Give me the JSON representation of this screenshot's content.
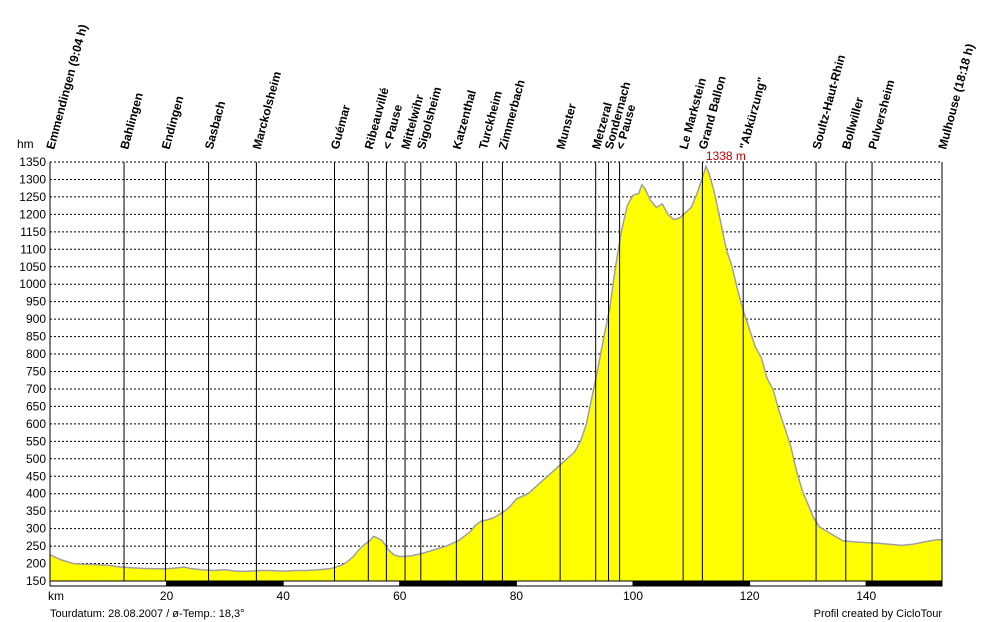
{
  "chart_data": {
    "type": "area",
    "title": "",
    "xlabel": "km",
    "ylabel": "hm",
    "xlim": [
      0,
      153
    ],
    "ylim": [
      150,
      1350
    ],
    "grid": true,
    "fill_color": "#ffff00",
    "line_color": "#a0a0a0",
    "y_ticks": [
      150,
      200,
      250,
      300,
      350,
      400,
      450,
      500,
      550,
      600,
      650,
      700,
      750,
      800,
      850,
      900,
      950,
      1000,
      1050,
      1100,
      1150,
      1200,
      1250,
      1300,
      1350
    ],
    "x_ticks": [
      20,
      40,
      60,
      80,
      100,
      120,
      140
    ],
    "peak_label": "1338 m",
    "peak": {
      "x": 112.5,
      "y": 1338
    },
    "profile": [
      [
        0,
        225
      ],
      [
        2,
        210
      ],
      [
        4,
        200
      ],
      [
        6,
        198
      ],
      [
        8,
        197
      ],
      [
        10,
        195
      ],
      [
        12,
        190
      ],
      [
        14,
        188
      ],
      [
        16,
        186
      ],
      [
        18,
        185
      ],
      [
        20,
        185
      ],
      [
        22,
        188
      ],
      [
        23,
        190
      ],
      [
        24,
        186
      ],
      [
        26,
        182
      ],
      [
        28,
        180
      ],
      [
        30,
        182
      ],
      [
        32,
        178
      ],
      [
        34,
        178
      ],
      [
        36,
        180
      ],
      [
        38,
        180
      ],
      [
        40,
        178
      ],
      [
        42,
        180
      ],
      [
        44,
        180
      ],
      [
        46,
        182
      ],
      [
        48,
        185
      ],
      [
        50,
        195
      ],
      [
        51,
        205
      ],
      [
        52,
        220
      ],
      [
        53,
        240
      ],
      [
        54,
        255
      ],
      [
        55,
        268
      ],
      [
        55.5,
        278
      ],
      [
        56,
        275
      ],
      [
        57,
        265
      ],
      [
        58,
        240
      ],
      [
        59,
        225
      ],
      [
        60,
        220
      ],
      [
        62,
        222
      ],
      [
        64,
        230
      ],
      [
        66,
        240
      ],
      [
        68,
        250
      ],
      [
        70,
        265
      ],
      [
        72,
        290
      ],
      [
        73,
        310
      ],
      [
        74,
        322
      ],
      [
        75,
        325
      ],
      [
        76,
        330
      ],
      [
        77,
        340
      ],
      [
        78,
        350
      ],
      [
        79,
        365
      ],
      [
        80,
        385
      ],
      [
        82,
        400
      ],
      [
        84,
        430
      ],
      [
        86,
        460
      ],
      [
        88,
        490
      ],
      [
        89,
        505
      ],
      [
        90,
        520
      ],
      [
        91,
        550
      ],
      [
        92,
        600
      ],
      [
        93,
        680
      ],
      [
        94,
        760
      ],
      [
        95,
        850
      ],
      [
        96,
        930
      ],
      [
        97,
        1050
      ],
      [
        98,
        1150
      ],
      [
        99,
        1225
      ],
      [
        100,
        1255
      ],
      [
        101,
        1260
      ],
      [
        101.5,
        1285
      ],
      [
        102,
        1275
      ],
      [
        103,
        1240
      ],
      [
        104,
        1220
      ],
      [
        105,
        1230
      ],
      [
        106,
        1200
      ],
      [
        107,
        1185
      ],
      [
        108,
        1190
      ],
      [
        109,
        1205
      ],
      [
        110,
        1220
      ],
      [
        111,
        1260
      ],
      [
        112,
        1310
      ],
      [
        112.5,
        1338
      ],
      [
        113,
        1320
      ],
      [
        114,
        1260
      ],
      [
        115,
        1180
      ],
      [
        116,
        1100
      ],
      [
        117,
        1050
      ],
      [
        118,
        980
      ],
      [
        119,
        920
      ],
      [
        120,
        870
      ],
      [
        121,
        820
      ],
      [
        122,
        790
      ],
      [
        123,
        730
      ],
      [
        124,
        700
      ],
      [
        125,
        640
      ],
      [
        126,
        590
      ],
      [
        127,
        540
      ],
      [
        128,
        470
      ],
      [
        129,
        410
      ],
      [
        130,
        370
      ],
      [
        131,
        330
      ],
      [
        132,
        305
      ],
      [
        134,
        285
      ],
      [
        136,
        265
      ],
      [
        138,
        262
      ],
      [
        140,
        260
      ],
      [
        142,
        258
      ],
      [
        144,
        255
      ],
      [
        146,
        252
      ],
      [
        148,
        255
      ],
      [
        150,
        262
      ],
      [
        152,
        268
      ],
      [
        153,
        268
      ]
    ],
    "waypoints": [
      {
        "km": 0,
        "name": "Emmendingen (9:04 h)"
      },
      {
        "km": 12.7,
        "name": "Bahlingen"
      },
      {
        "km": 19.8,
        "name": "Endingen"
      },
      {
        "km": 27.2,
        "name": "Sasbach"
      },
      {
        "km": 35.4,
        "name": "Marckolsheim"
      },
      {
        "km": 48.8,
        "name": "Guémar"
      },
      {
        "km": 54.6,
        "name": "Ribeauvillé"
      },
      {
        "km": 57.7,
        "name": "< Pause"
      },
      {
        "km": 60.9,
        "name": "Mittelwihr"
      },
      {
        "km": 63.6,
        "name": "Sigolsheim"
      },
      {
        "km": 69.7,
        "name": "Katzenthal"
      },
      {
        "km": 74.2,
        "name": "Turckheim"
      },
      {
        "km": 77.6,
        "name": "Zimmerbach"
      },
      {
        "km": 87.5,
        "name": "Munster"
      },
      {
        "km": 93.6,
        "name": "Metzeral"
      },
      {
        "km": 95.8,
        "name": "Sondernach"
      },
      {
        "km": 97.7,
        "name": "< Pause"
      },
      {
        "km": 108.6,
        "name": "Le Markstein"
      },
      {
        "km": 111.9,
        "name": "Grand Ballon"
      },
      {
        "km": 118.9,
        "name": "\"Abkürzung\""
      },
      {
        "km": 131.4,
        "name": "Soultz-Haut-Rhin"
      },
      {
        "km": 136.5,
        "name": "Bollwiller"
      },
      {
        "km": 141.0,
        "name": "Pulversheim"
      },
      {
        "km": 153,
        "name": "Mulhouse (18:18 h)"
      }
    ]
  },
  "footer": {
    "left": "Tourdatum: 28.08.2007  /  ø-Temp.: 18,3°",
    "right": "Profil created by CicloTour"
  }
}
